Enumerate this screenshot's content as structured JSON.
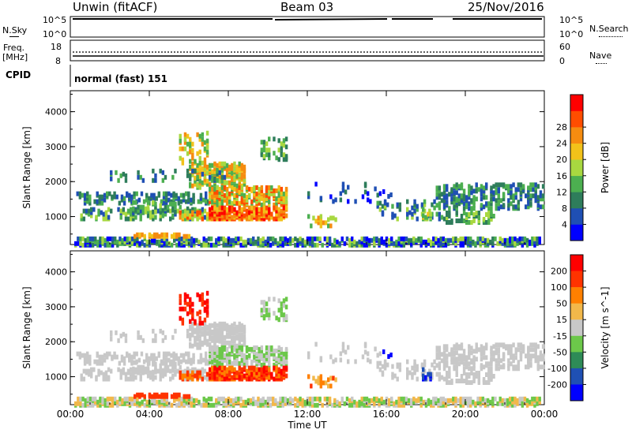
{
  "header": {
    "station": "Unwin (fitACF)",
    "beam": "Beam 03",
    "date": "25/Nov/2016"
  },
  "panels": {
    "nsky": {
      "label": "N.Sky",
      "tick_top": "10^5",
      "tick_bottom": "10^0"
    },
    "nsearch": {
      "label": "N.Search",
      "tick_top": "10^5",
      "tick_bottom": "10^0"
    },
    "freq": {
      "label_line1": "Freq.",
      "label_line2": "[MHz]",
      "tick_top": "18",
      "tick_bottom": "8"
    },
    "nave": {
      "label": "Nave",
      "tick_top": "60",
      "tick_bottom": "0"
    },
    "cpid": {
      "label": "CPID",
      "value": "normal (fast) 151"
    }
  },
  "colors": {
    "power_scale": [
      "#0000ff",
      "#1f4fb4",
      "#2e7d5b",
      "#4caf50",
      "#a8d840",
      "#f2c21a",
      "#f58c10",
      "#ff4d00",
      "#ff0000"
    ],
    "velocity_scale": [
      "#ff0000",
      "#ff3300",
      "#ff8000",
      "#f2b84a",
      "#c8c8c8",
      "#6cc84a",
      "#2e8b57",
      "#1f50b4",
      "#0000ff"
    ]
  },
  "chart_data": [
    {
      "type": "heatmap",
      "title": "Power",
      "xlabel": "",
      "ylabel": "Slant Range [km]",
      "x_ticks": [
        "00:00",
        "04:00",
        "08:00",
        "12:00",
        "16:00",
        "20:00",
        "00:00"
      ],
      "y_ticks": [
        "1000",
        "2000",
        "3000",
        "4000"
      ],
      "ylim": [
        200,
        4600
      ],
      "colorbar": {
        "label": "Power [dB]",
        "ticks": [
          "4",
          "8",
          "12",
          "16",
          "20",
          "24",
          "28"
        ]
      }
    },
    {
      "type": "heatmap",
      "title": "Velocity",
      "xlabel": "Time UT",
      "ylabel": "Slant Range [km]",
      "x_ticks": [
        "00:00",
        "04:00",
        "08:00",
        "12:00",
        "16:00",
        "20:00",
        "00:00"
      ],
      "y_ticks": [
        "1000",
        "2000",
        "3000",
        "4000"
      ],
      "ylim": [
        200,
        4600
      ],
      "colorbar": {
        "label": "Velocity [m s^-1]",
        "ticks": [
          "200",
          "100",
          "50",
          "15",
          "-15",
          "-50",
          "-100",
          "-200"
        ]
      }
    }
  ]
}
